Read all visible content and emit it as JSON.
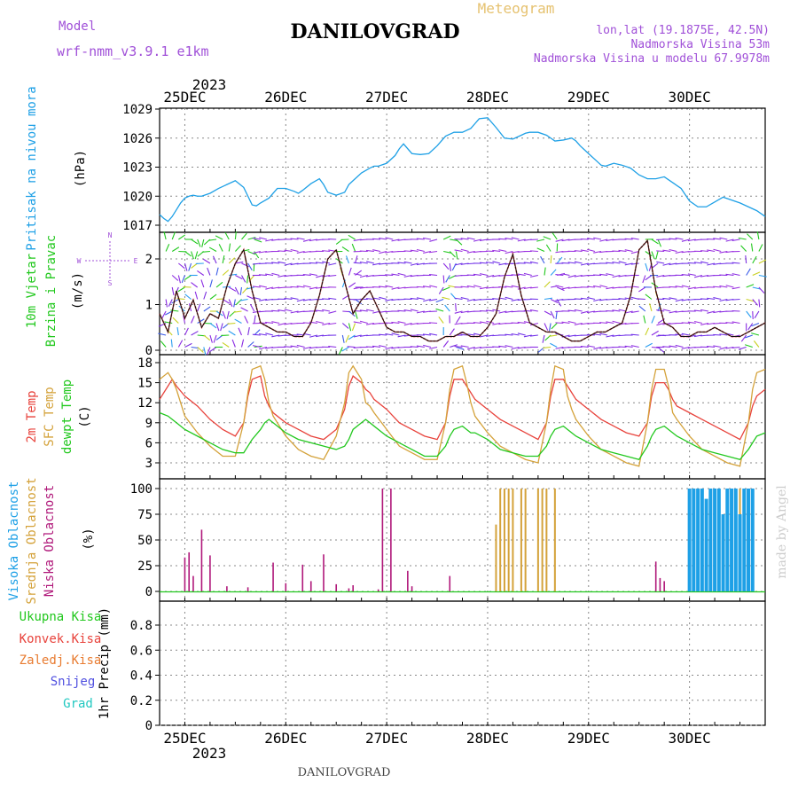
{
  "header": {
    "model_label": "Model",
    "model_name": "wrf-nmm_v3.9.1 e1km",
    "title": "DANILOVGRAD",
    "meteogram_label": "Meteogram",
    "lonlat": "lon,lat (19.1875E, 42.5N)",
    "elevation": "Nadmorska Visina 53m",
    "model_elevation": "Nadmorska Visina u modelu 67.9978m"
  },
  "footer": {
    "station": "DANILOVGRAD",
    "credit": "made by Angel"
  },
  "colors": {
    "pressure": "#1ea0e6",
    "wind_green": "#22c81e",
    "wind_violet": "#8a2be2",
    "temp2m": "#e8433c",
    "sfc": "#d4a23a",
    "dewpt": "#22c81e",
    "high_cloud": "#1ea0e6",
    "mid_cloud": "#d4a23a",
    "low_cloud": "#b0187a"
  },
  "time_axis": {
    "year": "2023",
    "days": [
      "25DEC",
      "26DEC",
      "27DEC",
      "28DEC",
      "29DEC",
      "30DEC"
    ],
    "start_hour": -6,
    "end_hour": 138
  },
  "panels": {
    "pressure": {
      "labels": [
        "Pritisak na nivou mora"
      ],
      "unit": "(hPa)",
      "ylim": [
        1017,
        1029
      ],
      "yticks": [
        "1017",
        "1020",
        "1023",
        "1026",
        "1029"
      ]
    },
    "wind": {
      "labels": [
        "10m Vjetar",
        "Brzina i Pravac"
      ],
      "unit": "(m/s)",
      "ylim": [
        0,
        2.6
      ],
      "yticks": [
        "0",
        "1",
        "2"
      ],
      "compass": [
        "N",
        "S",
        "W",
        "E"
      ]
    },
    "temperature": {
      "labels": [
        "2m Temp",
        "SFC Temp",
        "dewpt Temp"
      ],
      "unit": "(C)",
      "ylim": [
        1.5,
        18.5
      ],
      "yticks": [
        "3",
        "6",
        "9",
        "12",
        "15",
        "18"
      ]
    },
    "clouds": {
      "labels": [
        "Visoka Oblacnost",
        "Srednja Oblacnost",
        "Niska Oblacnost"
      ],
      "unit": "(%)",
      "ylim": [
        0,
        100
      ],
      "yticks": [
        "0",
        "25",
        "50",
        "75",
        "100"
      ]
    },
    "precip": {
      "labels": [
        "Ukupna Kisa",
        "Konvek.Kisa",
        "Zaledj.Kisa",
        "Snijeg",
        "Grad"
      ],
      "unit": "1hr Precip (mm)",
      "ylim": [
        0,
        1
      ],
      "yticks": [
        "0",
        "0.2",
        "0.4",
        "0.6",
        "0.8"
      ]
    }
  },
  "chart_data": [
    {
      "type": "line",
      "name": "pressure",
      "x_unit": "hours from 2023-12-25 00:00",
      "ylabel": "(hPa)",
      "ylim": [
        1017,
        1029
      ],
      "x": [
        -6,
        -5,
        -4,
        -3,
        -2,
        -1,
        0,
        1,
        2,
        3,
        4,
        6,
        8,
        10,
        12,
        14,
        15,
        16,
        17,
        18,
        20,
        21,
        22,
        24,
        26,
        27,
        28,
        30,
        32,
        33,
        34,
        36,
        38,
        39,
        40,
        42,
        44,
        45,
        46,
        48,
        50,
        51,
        52,
        54,
        56,
        58,
        60,
        62,
        64,
        66,
        68,
        69,
        70,
        72,
        74,
        76,
        78,
        80,
        81,
        82,
        84,
        86,
        87,
        88,
        90,
        92,
        93,
        94,
        96,
        98,
        99,
        100,
        102,
        104,
        106,
        108,
        110,
        112,
        114,
        116,
        118,
        120,
        122,
        124,
        126,
        128,
        130,
        132,
        134,
        136,
        138
      ],
      "y": [
        1018.1,
        1017.7,
        1017.4,
        1017.9,
        1018.6,
        1019.3,
        1019.8,
        1020.0,
        1020.1,
        1020.0,
        1020.0,
        1020.3,
        1020.8,
        1021.2,
        1021.6,
        1020.9,
        1020.0,
        1019.1,
        1019.0,
        1019.3,
        1019.8,
        1020.3,
        1020.8,
        1020.8,
        1020.5,
        1020.3,
        1020.6,
        1021.3,
        1021.8,
        1021.2,
        1020.4,
        1020.1,
        1020.4,
        1021.2,
        1021.6,
        1022.4,
        1022.9,
        1023.1,
        1023.1,
        1023.4,
        1024.2,
        1024.9,
        1025.4,
        1024.4,
        1024.3,
        1024.4,
        1025.2,
        1026.2,
        1026.6,
        1026.6,
        1027.0,
        1027.5,
        1028.0,
        1028.1,
        1027.1,
        1026.0,
        1025.9,
        1026.3,
        1026.5,
        1026.6,
        1026.6,
        1026.3,
        1026.0,
        1025.7,
        1025.8,
        1026.0,
        1025.7,
        1025.2,
        1024.4,
        1023.6,
        1023.2,
        1023.1,
        1023.4,
        1023.2,
        1022.9,
        1022.2,
        1021.8,
        1021.8,
        1022.0,
        1021.4,
        1020.8,
        1019.5,
        1018.9,
        1018.9,
        1019.4,
        1019.9,
        1019.6,
        1019.3,
        1018.9,
        1018.5,
        1017.9
      ]
    },
    {
      "type": "line",
      "name": "wind",
      "x_unit": "hours from 2023-12-25 00:00",
      "ylabel": "(m/s)",
      "ylim": [
        0,
        2.6
      ],
      "x": [
        -6,
        -4,
        -2,
        0,
        2,
        4,
        6,
        8,
        10,
        12,
        14,
        16,
        18,
        20,
        22,
        24,
        26,
        28,
        30,
        32,
        34,
        36,
        38,
        40,
        42,
        44,
        46,
        48,
        50,
        52,
        54,
        56,
        58,
        60,
        62,
        64,
        66,
        68,
        70,
        72,
        74,
        76,
        78,
        80,
        82,
        84,
        86,
        88,
        90,
        92,
        94,
        96,
        98,
        100,
        102,
        104,
        106,
        108,
        110,
        112,
        114,
        116,
        118,
        120,
        122,
        124,
        126,
        128,
        130,
        132,
        134,
        136,
        138
      ],
      "y": [
        0.8,
        0.4,
        1.3,
        0.7,
        1.1,
        0.5,
        0.8,
        0.7,
        1.4,
        1.9,
        2.2,
        1.3,
        0.6,
        0.5,
        0.4,
        0.4,
        0.3,
        0.3,
        0.6,
        1.2,
        2.0,
        2.2,
        1.5,
        0.8,
        1.1,
        1.3,
        0.9,
        0.5,
        0.4,
        0.4,
        0.3,
        0.3,
        0.2,
        0.2,
        0.3,
        0.3,
        0.4,
        0.3,
        0.3,
        0.5,
        0.8,
        1.6,
        2.1,
        1.2,
        0.6,
        0.5,
        0.4,
        0.4,
        0.3,
        0.2,
        0.2,
        0.3,
        0.4,
        0.4,
        0.5,
        0.6,
        1.2,
        2.2,
        2.4,
        1.3,
        0.6,
        0.5,
        0.3,
        0.3,
        0.4,
        0.4,
        0.5,
        0.4,
        0.3,
        0.3,
        0.4,
        0.5,
        0.6
      ]
    },
    {
      "type": "line",
      "name": "temperature",
      "x_unit": "hours from 2023-12-25 00:00",
      "ylabel": "(C)",
      "ylim": [
        1.5,
        18.5
      ],
      "x": [
        -6,
        -4,
        -3,
        -2,
        0,
        3,
        6,
        9,
        12,
        14,
        15,
        16,
        18,
        19,
        20,
        21,
        24,
        27,
        30,
        33,
        36,
        38,
        39,
        40,
        42,
        43,
        44,
        45,
        48,
        51,
        54,
        57,
        60,
        62,
        63,
        64,
        66,
        67,
        68,
        69,
        72,
        75,
        78,
        81,
        84,
        86,
        87,
        88,
        90,
        91,
        92,
        93,
        96,
        99,
        102,
        105,
        108,
        110,
        111,
        112,
        114,
        115,
        116,
        117,
        120,
        123,
        126,
        129,
        132,
        134,
        135,
        136,
        138
      ],
      "series": [
        {
          "name": "2m Temp",
          "values": [
            12.5,
            14.5,
            15.5,
            14.5,
            13.0,
            11.5,
            9.5,
            8.0,
            7.0,
            9.0,
            13.0,
            15.5,
            16.0,
            13.0,
            11.5,
            10.5,
            9.0,
            8.0,
            7.0,
            6.5,
            8.0,
            11.0,
            14.5,
            16.0,
            15.0,
            14.0,
            13.5,
            12.5,
            11.0,
            9.0,
            8.0,
            7.0,
            6.5,
            9.0,
            13.0,
            15.5,
            15.5,
            14.5,
            13.5,
            12.5,
            11.0,
            9.5,
            8.5,
            7.5,
            6.5,
            9.0,
            13.0,
            15.5,
            15.5,
            14.5,
            13.5,
            12.5,
            11.0,
            9.5,
            8.5,
            7.5,
            7.0,
            9.0,
            13.0,
            15.0,
            15.0,
            14.0,
            12.5,
            11.5,
            10.5,
            9.5,
            8.5,
            7.5,
            6.5,
            9.0,
            11.5,
            13.0,
            14.0
          ]
        },
        {
          "name": "SFC Temp",
          "values": [
            15.5,
            16.5,
            15.5,
            14.0,
            10.0,
            7.5,
            5.5,
            4.0,
            4.0,
            9.0,
            13.5,
            17.0,
            17.5,
            15.5,
            12.0,
            10.0,
            7.0,
            5.0,
            4.0,
            3.5,
            7.0,
            12.0,
            16.5,
            17.5,
            15.5,
            12.0,
            11.5,
            10.5,
            8.0,
            5.5,
            4.5,
            3.5,
            3.5,
            9.0,
            14.0,
            17.0,
            17.5,
            15.0,
            12.0,
            10.0,
            7.5,
            5.5,
            4.5,
            3.5,
            3.0,
            9.0,
            14.0,
            17.5,
            17.0,
            13.0,
            11.0,
            9.5,
            7.0,
            5.0,
            4.0,
            3.0,
            2.5,
            9.0,
            14.0,
            17.0,
            17.0,
            14.5,
            10.5,
            9.5,
            7.0,
            5.0,
            4.0,
            3.0,
            2.5,
            9.0,
            14.0,
            16.5,
            17.0
          ]
        },
        {
          "name": "dewpt Temp",
          "values": [
            10.5,
            10.0,
            9.5,
            9.0,
            8.0,
            7.0,
            6.0,
            5.0,
            4.5,
            4.5,
            5.5,
            6.5,
            8.0,
            9.0,
            9.5,
            9.0,
            7.5,
            6.5,
            6.0,
            5.5,
            5.0,
            5.5,
            6.5,
            8.0,
            9.0,
            9.5,
            9.0,
            8.5,
            7.0,
            6.0,
            5.0,
            4.0,
            4.0,
            5.5,
            7.0,
            8.0,
            8.5,
            8.0,
            7.5,
            7.5,
            6.5,
            5.0,
            4.5,
            4.0,
            4.0,
            5.5,
            7.0,
            8.0,
            8.5,
            8.0,
            7.5,
            7.0,
            6.0,
            5.0,
            4.5,
            4.0,
            3.5,
            5.5,
            7.0,
            8.0,
            8.5,
            8.0,
            7.5,
            7.0,
            6.0,
            5.0,
            4.5,
            4.0,
            3.5,
            5.0,
            6.0,
            7.0,
            7.5
          ]
        }
      ]
    },
    {
      "type": "bar",
      "name": "clouds",
      "x_unit": "hours from 2023-12-25 00:00",
      "ylabel": "(%)",
      "ylim": [
        0,
        100
      ],
      "series": [
        {
          "name": "Niska Oblacnost",
          "x": [
            0,
            1,
            2,
            4,
            6,
            10,
            15,
            21,
            24,
            28,
            30,
            33,
            36,
            39,
            40,
            46,
            47,
            49,
            53,
            54,
            63,
            112,
            113,
            114
          ],
          "values": [
            33,
            38,
            15,
            60,
            35,
            5,
            4,
            28,
            8,
            26,
            10,
            36,
            7,
            3,
            6,
            2,
            100,
            100,
            20,
            5,
            15,
            29,
            13,
            10
          ]
        },
        {
          "name": "Srednja Oblacnost",
          "x": [
            70,
            71,
            72,
            73,
            74,
            75,
            76,
            77,
            78,
            80,
            81,
            84,
            85,
            86,
            88,
            120,
            121,
            130,
            131,
            132
          ],
          "values": [
            0,
            0,
            0,
            0,
            65,
            100,
            100,
            100,
            100,
            100,
            100,
            100,
            100,
            100,
            100,
            100,
            100,
            100,
            100,
            100
          ]
        },
        {
          "name": "Visoka Oblacnost",
          "x": [
            120,
            121,
            122,
            123,
            124,
            125,
            126,
            127,
            128,
            129,
            130,
            131,
            132,
            133,
            134,
            135
          ],
          "values": [
            100,
            100,
            100,
            100,
            90,
            100,
            100,
            100,
            75,
            100,
            100,
            100,
            75,
            100,
            100,
            100
          ]
        }
      ]
    },
    {
      "type": "bar",
      "name": "precip",
      "x_unit": "hours from 2023-12-25 00:00",
      "ylabel": "1hr Precip (mm)",
      "ylim": [
        0,
        1
      ],
      "series": []
    }
  ]
}
